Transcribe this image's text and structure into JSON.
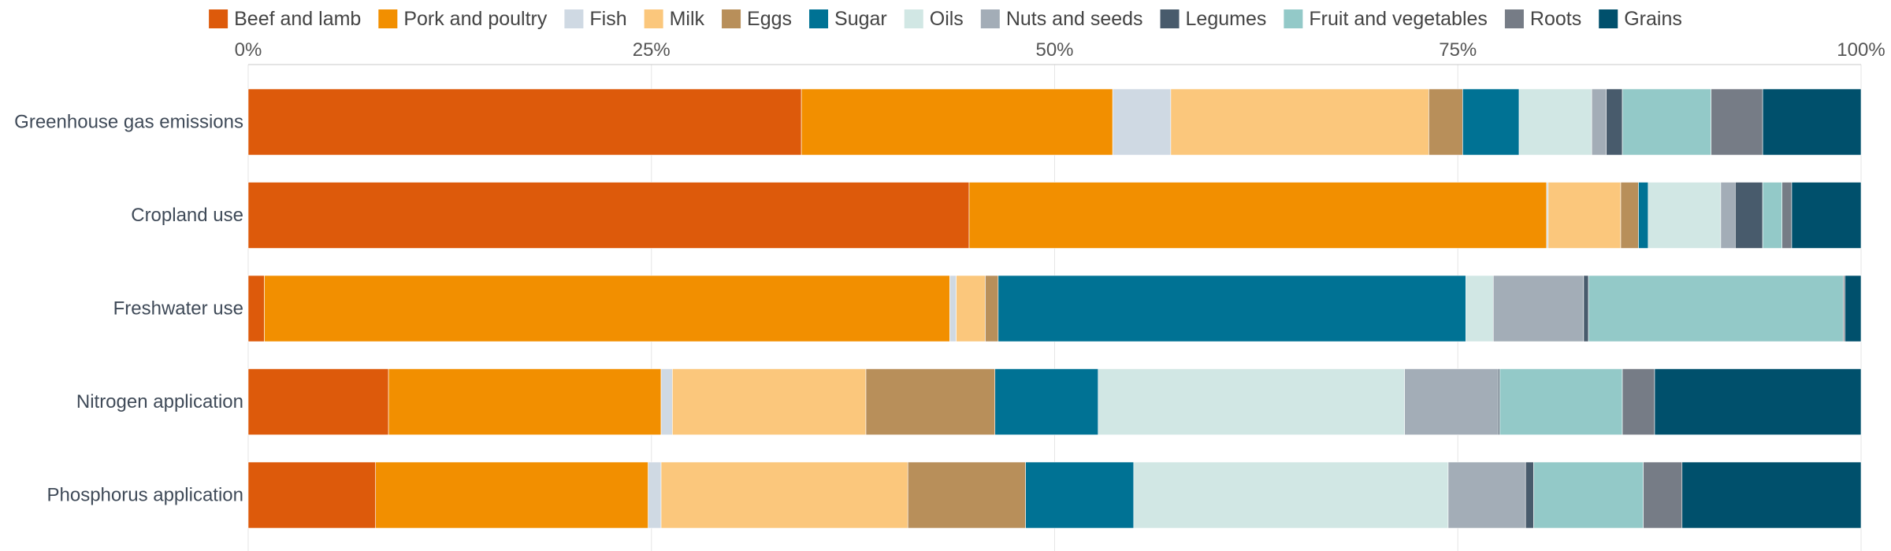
{
  "chart_data": {
    "type": "bar",
    "orientation": "horizontal",
    "stacked": "percent",
    "title": "",
    "xlabel": "",
    "ylabel": "",
    "xlim": [
      0,
      100
    ],
    "x_ticks": [
      "0%",
      "25%",
      "50%",
      "75%",
      "100%"
    ],
    "grid": true,
    "legend_position": "top",
    "categories": [
      "Greenhouse gas emissions",
      "Cropland use",
      "Freshwater use",
      "Nitrogen application",
      "Phosphorus application"
    ],
    "series": [
      {
        "name": "Beef and lamb",
        "color": "#dd5a0b",
        "values": [
          34.3,
          44.7,
          1.0,
          8.7,
          7.9
        ]
      },
      {
        "name": "Pork and poultry",
        "color": "#f28f00",
        "values": [
          19.3,
          35.8,
          42.5,
          16.9,
          16.9
        ]
      },
      {
        "name": "Fish",
        "color": "#cfd9e3",
        "values": [
          3.6,
          0.1,
          0.4,
          0.7,
          0.8
        ]
      },
      {
        "name": "Milk",
        "color": "#fbc77c",
        "values": [
          16.0,
          4.5,
          1.8,
          12.0,
          15.3
        ]
      },
      {
        "name": "Eggs",
        "color": "#b88f5a",
        "values": [
          2.1,
          1.1,
          0.8,
          8.0,
          7.3
        ]
      },
      {
        "name": "Sugar",
        "color": "#007294",
        "values": [
          3.5,
          0.6,
          29.0,
          6.4,
          6.7
        ]
      },
      {
        "name": "Oils",
        "color": "#d1e7e4",
        "values": [
          4.5,
          4.5,
          1.7,
          19.0,
          19.5
        ]
      },
      {
        "name": "Nuts and seeds",
        "color": "#a3adb7",
        "values": [
          0.9,
          0.9,
          5.6,
          5.8,
          4.8
        ]
      },
      {
        "name": "Legumes",
        "color": "#485b6c",
        "values": [
          1.0,
          1.7,
          0.3,
          0.1,
          0.5
        ]
      },
      {
        "name": "Fruit and vegetables",
        "color": "#93c9c8",
        "values": [
          5.5,
          1.2,
          15.8,
          7.6,
          6.8
        ]
      },
      {
        "name": "Roots",
        "color": "#767c86",
        "values": [
          3.2,
          0.6,
          0.1,
          2.0,
          2.4
        ]
      },
      {
        "name": "Grains",
        "color": "#00506c",
        "values": [
          6.1,
          4.3,
          1.0,
          12.8,
          11.1
        ]
      }
    ]
  }
}
